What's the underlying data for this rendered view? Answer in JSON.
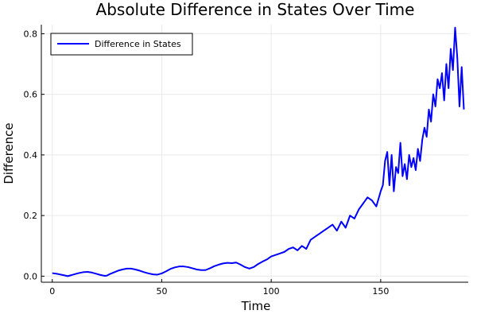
{
  "chart_data": {
    "type": "line",
    "title": "Absolute Difference in States Over Time",
    "xlabel": "Time",
    "ylabel": "Difference",
    "xlim": [
      -5,
      190
    ],
    "ylim": [
      -0.02,
      0.83
    ],
    "xticks": [
      0,
      50,
      100,
      150
    ],
    "yticks": [
      0.0,
      0.2,
      0.4,
      0.6,
      0.8
    ],
    "grid": true,
    "legend_position": "top-left",
    "series": [
      {
        "name": "Difference in States",
        "color": "#0000ff",
        "x": [
          0,
          2,
          4,
          6,
          7,
          8,
          10,
          12,
          14,
          16,
          18,
          20,
          22,
          24,
          25,
          26,
          28,
          30,
          32,
          34,
          36,
          38,
          40,
          42,
          44,
          46,
          48,
          50,
          52,
          54,
          56,
          58,
          60,
          62,
          64,
          66,
          68,
          70,
          72,
          74,
          76,
          78,
          80,
          82,
          84,
          86,
          88,
          90,
          92,
          94,
          96,
          98,
          100,
          102,
          104,
          106,
          108,
          110,
          112,
          114,
          116,
          118,
          120,
          122,
          124,
          126,
          128,
          130,
          132,
          134,
          136,
          138,
          140,
          142,
          144,
          146,
          148,
          150,
          151,
          152,
          153,
          154,
          155,
          156,
          157,
          158,
          159,
          160,
          161,
          162,
          163,
          164,
          165,
          166,
          167,
          168,
          169,
          170,
          171,
          172,
          173,
          174,
          175,
          176,
          177,
          178,
          179,
          180,
          181,
          182,
          183,
          184,
          185,
          186,
          187,
          188
        ],
        "values": [
          0.01,
          0.008,
          0.005,
          0.002,
          0.0,
          0.002,
          0.006,
          0.01,
          0.013,
          0.014,
          0.012,
          0.008,
          0.004,
          0.001,
          0.002,
          0.006,
          0.012,
          0.018,
          0.022,
          0.025,
          0.025,
          0.022,
          0.018,
          0.013,
          0.009,
          0.006,
          0.005,
          0.009,
          0.016,
          0.024,
          0.029,
          0.032,
          0.032,
          0.03,
          0.026,
          0.022,
          0.02,
          0.02,
          0.026,
          0.033,
          0.038,
          0.042,
          0.044,
          0.043,
          0.045,
          0.038,
          0.03,
          0.025,
          0.03,
          0.04,
          0.048,
          0.055,
          0.065,
          0.07,
          0.075,
          0.08,
          0.09,
          0.095,
          0.085,
          0.1,
          0.09,
          0.12,
          0.13,
          0.14,
          0.15,
          0.16,
          0.17,
          0.15,
          0.18,
          0.16,
          0.2,
          0.19,
          0.22,
          0.24,
          0.26,
          0.25,
          0.23,
          0.28,
          0.3,
          0.38,
          0.41,
          0.3,
          0.4,
          0.28,
          0.36,
          0.34,
          0.44,
          0.33,
          0.37,
          0.32,
          0.4,
          0.36,
          0.39,
          0.35,
          0.42,
          0.38,
          0.45,
          0.49,
          0.46,
          0.55,
          0.51,
          0.6,
          0.56,
          0.65,
          0.62,
          0.67,
          0.58,
          0.7,
          0.62,
          0.75,
          0.68,
          0.82,
          0.72,
          0.56,
          0.69,
          0.55
        ]
      }
    ]
  }
}
